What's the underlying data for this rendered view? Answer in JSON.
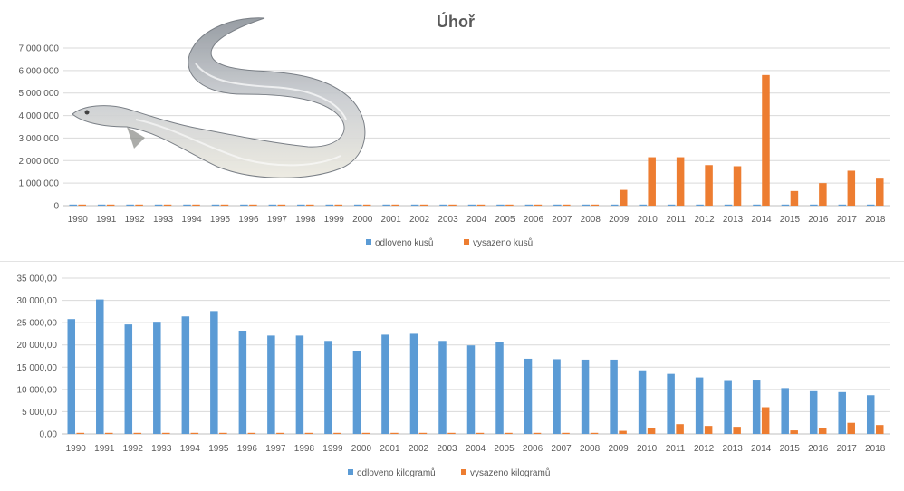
{
  "chart_data": [
    {
      "type": "bar",
      "title": "Úhoř",
      "categories": [
        "1990",
        "1991",
        "1992",
        "1993",
        "1994",
        "1995",
        "1996",
        "1997",
        "1998",
        "1999",
        "2000",
        "2001",
        "2002",
        "2003",
        "2004",
        "2005",
        "2006",
        "2007",
        "2008",
        "2009",
        "2010",
        "2011",
        "2012",
        "2013",
        "2014",
        "2015",
        "2016",
        "2017",
        "2018"
      ],
      "ylim": [
        0,
        7000000
      ],
      "yticks": [
        0,
        1000000,
        2000000,
        3000000,
        4000000,
        5000000,
        6000000,
        7000000
      ],
      "ytick_labels": [
        "0",
        "1 000 000",
        "2 000 000",
        "3 000 000",
        "4 000 000",
        "5 000 000",
        "6 000 000",
        "7 000 000"
      ],
      "grid": true,
      "legend_position": "bottom",
      "series": [
        {
          "name": "odloveno kusů",
          "color": "#5b9bd5",
          "values": [
            0,
            0,
            0,
            0,
            0,
            0,
            0,
            0,
            0,
            0,
            0,
            0,
            0,
            0,
            0,
            0,
            0,
            0,
            0,
            0,
            0,
            0,
            0,
            0,
            0,
            0,
            0,
            0,
            0
          ]
        },
        {
          "name": "vysazeno kusů",
          "color": "#ed7d31",
          "values": [
            0,
            0,
            0,
            0,
            0,
            0,
            0,
            0,
            0,
            0,
            0,
            0,
            0,
            0,
            0,
            0,
            0,
            0,
            0,
            700000,
            2150000,
            2150000,
            1800000,
            1750000,
            5800000,
            650000,
            1000000,
            1550000,
            1200000
          ]
        }
      ]
    },
    {
      "type": "bar",
      "categories": [
        "1990",
        "1991",
        "1992",
        "1993",
        "1994",
        "1995",
        "1996",
        "1997",
        "1998",
        "1999",
        "2000",
        "2001",
        "2002",
        "2003",
        "2004",
        "2005",
        "2006",
        "2007",
        "2008",
        "2009",
        "2010",
        "2011",
        "2012",
        "2013",
        "2014",
        "2015",
        "2016",
        "2017",
        "2018"
      ],
      "ylim": [
        0,
        35000
      ],
      "yticks": [
        0,
        5000,
        10000,
        15000,
        20000,
        25000,
        30000,
        35000
      ],
      "ytick_labels": [
        "0,00",
        "5 000,00",
        "10 000,00",
        "15 000,00",
        "20 000,00",
        "25 000,00",
        "30 000,00",
        "35 000,00"
      ],
      "grid": true,
      "legend_position": "bottom",
      "series": [
        {
          "name": "odloveno kilogramů",
          "color": "#5b9bd5",
          "values": [
            25800,
            30200,
            24600,
            25200,
            26400,
            27600,
            23200,
            22100,
            22100,
            20900,
            18700,
            22300,
            22500,
            20900,
            19900,
            20700,
            16900,
            16800,
            16700,
            16700,
            14300,
            13500,
            12700,
            11900,
            12000,
            10300,
            9600,
            9400,
            8700
          ]
        },
        {
          "name": "vysazeno kilogramů",
          "color": "#ed7d31",
          "values": [
            0,
            0,
            0,
            0,
            0,
            0,
            0,
            0,
            0,
            0,
            0,
            0,
            0,
            0,
            0,
            0,
            0,
            0,
            0,
            700,
            1300,
            2200,
            1800,
            1600,
            6000,
            800,
            1400,
            2500,
            2000
          ]
        }
      ]
    }
  ]
}
